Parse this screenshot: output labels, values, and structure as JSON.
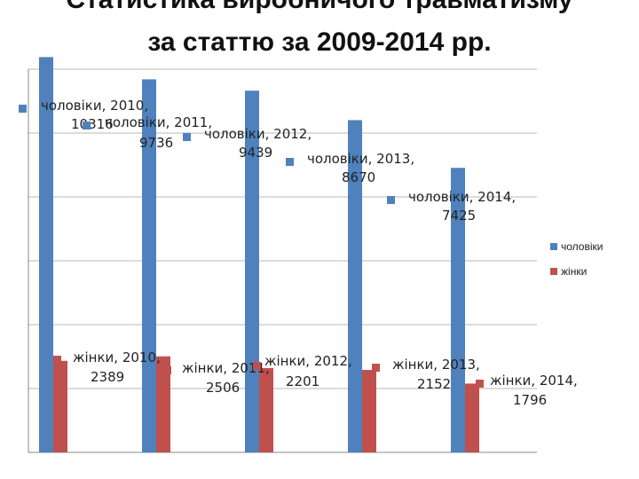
{
  "chart_data": {
    "type": "bar",
    "title": "Статистика виробничого травматизму",
    "subtitle": "за статтю за 2009-2014 рр.",
    "categories": [
      "2010",
      "2011",
      "2012",
      "2013",
      "2014"
    ],
    "series": [
      {
        "name": "чоловіки",
        "values": [
          10316,
          9736,
          9439,
          8670,
          7425
        ],
        "color": "#4f81bd"
      },
      {
        "name": "жінки",
        "values": [
          2389,
          2506,
          2201,
          2152,
          1796
        ],
        "color": "#c0504d"
      }
    ],
    "ylim": [
      0,
      10000
    ],
    "grid": true,
    "legend": "right",
    "data_labels": {
      "men": [
        "чоловіки, 2010,|10316",
        "чоловіки, 2011,|9736",
        "чоловіки, 2012,|9439",
        "чоловіки, 2013,|8670",
        "чоловіки, 2014,|7425"
      ],
      "women": [
        "жінки, 2010,|2389",
        "жінки, 2011,|2506",
        "жінки, 2012,|2201",
        "жінки, 2013,|2152",
        "жінки, 2014,|1796"
      ]
    }
  }
}
